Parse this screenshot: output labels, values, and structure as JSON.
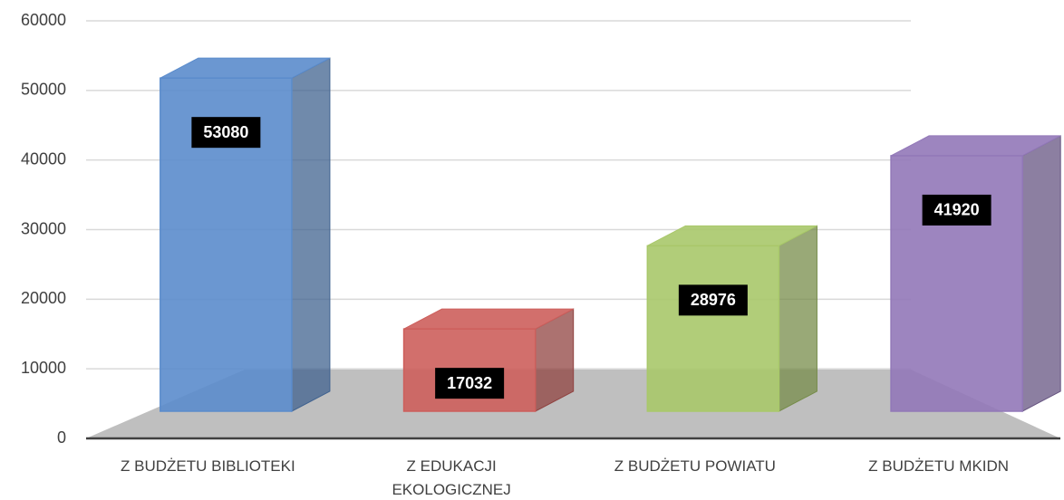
{
  "chart_data": {
    "type": "bar3d",
    "categories": [
      "Z BUDŻETU BIBLIOTEKI",
      "Z EDUKACJI EKOLOGICZNEJ",
      "Z BUDŻETU POWIATU",
      "Z BUDŻETU MKIDN"
    ],
    "values": [
      53080,
      17032,
      28976,
      41920
    ],
    "colors": [
      "#5b8ccc",
      "#cd5f5c",
      "#a9c86a",
      "#9278b8"
    ],
    "ylim": [
      0,
      60000
    ],
    "yticks": [
      0,
      10000,
      20000,
      30000,
      40000,
      50000,
      60000
    ],
    "grid": true
  }
}
